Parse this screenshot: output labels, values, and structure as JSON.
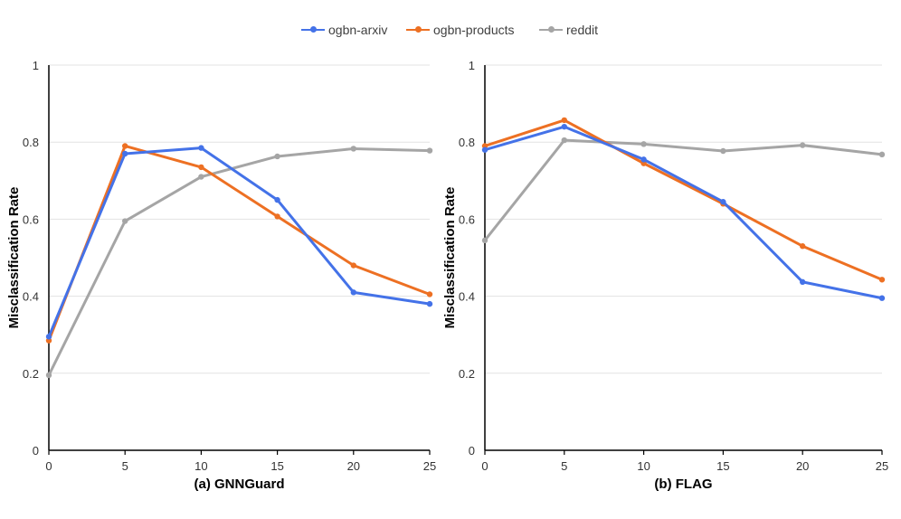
{
  "legend": [
    {
      "name": "ogbn-arxiv",
      "color": "#4472E8"
    },
    {
      "name": "ogbn-products",
      "color": "#ED7023"
    },
    {
      "name": "reddit",
      "color": "#A5A5A5"
    }
  ],
  "chart_data": [
    {
      "type": "line",
      "title": "(a) GNNGuard",
      "xlabel": "",
      "ylabel": "Misclassification Rate",
      "x": [
        0,
        5,
        10,
        15,
        20,
        25
      ],
      "xticks": [
        "0",
        "5",
        "10",
        "15",
        "20",
        "25"
      ],
      "yticks": [
        "0",
        "0.2",
        "0.4",
        "0.6",
        "0.8",
        "1"
      ],
      "ylim": [
        0,
        1
      ],
      "grid": true,
      "legend_position": "top",
      "series": [
        {
          "name": "ogbn-arxiv",
          "color": "#4472E8",
          "values": [
            0.295,
            0.77,
            0.785,
            0.65,
            0.41,
            0.38
          ]
        },
        {
          "name": "ogbn-products",
          "color": "#ED7023",
          "values": [
            0.285,
            0.79,
            0.735,
            0.607,
            0.48,
            0.405
          ]
        },
        {
          "name": "reddit",
          "color": "#A5A5A5",
          "values": [
            0.195,
            0.595,
            0.71,
            0.763,
            0.783,
            0.778
          ]
        }
      ]
    },
    {
      "type": "line",
      "title": "(b) FLAG",
      "xlabel": "",
      "ylabel": "Misclassification Rate",
      "x": [
        0,
        5,
        10,
        15,
        20,
        25
      ],
      "xticks": [
        "0",
        "5",
        "10",
        "15",
        "20",
        "25"
      ],
      "yticks": [
        "0",
        "0.2",
        "0.4",
        "0.6",
        "0.8",
        "1"
      ],
      "ylim": [
        0,
        1
      ],
      "grid": true,
      "legend_position": "top",
      "series": [
        {
          "name": "ogbn-arxiv",
          "color": "#4472E8",
          "values": [
            0.78,
            0.84,
            0.755,
            0.645,
            0.437,
            0.395
          ]
        },
        {
          "name": "ogbn-products",
          "color": "#ED7023",
          "values": [
            0.79,
            0.857,
            0.745,
            0.64,
            0.53,
            0.443
          ]
        },
        {
          "name": "reddit",
          "color": "#A5A5A5",
          "values": [
            0.545,
            0.805,
            0.795,
            0.777,
            0.792,
            0.768
          ]
        }
      ]
    }
  ]
}
